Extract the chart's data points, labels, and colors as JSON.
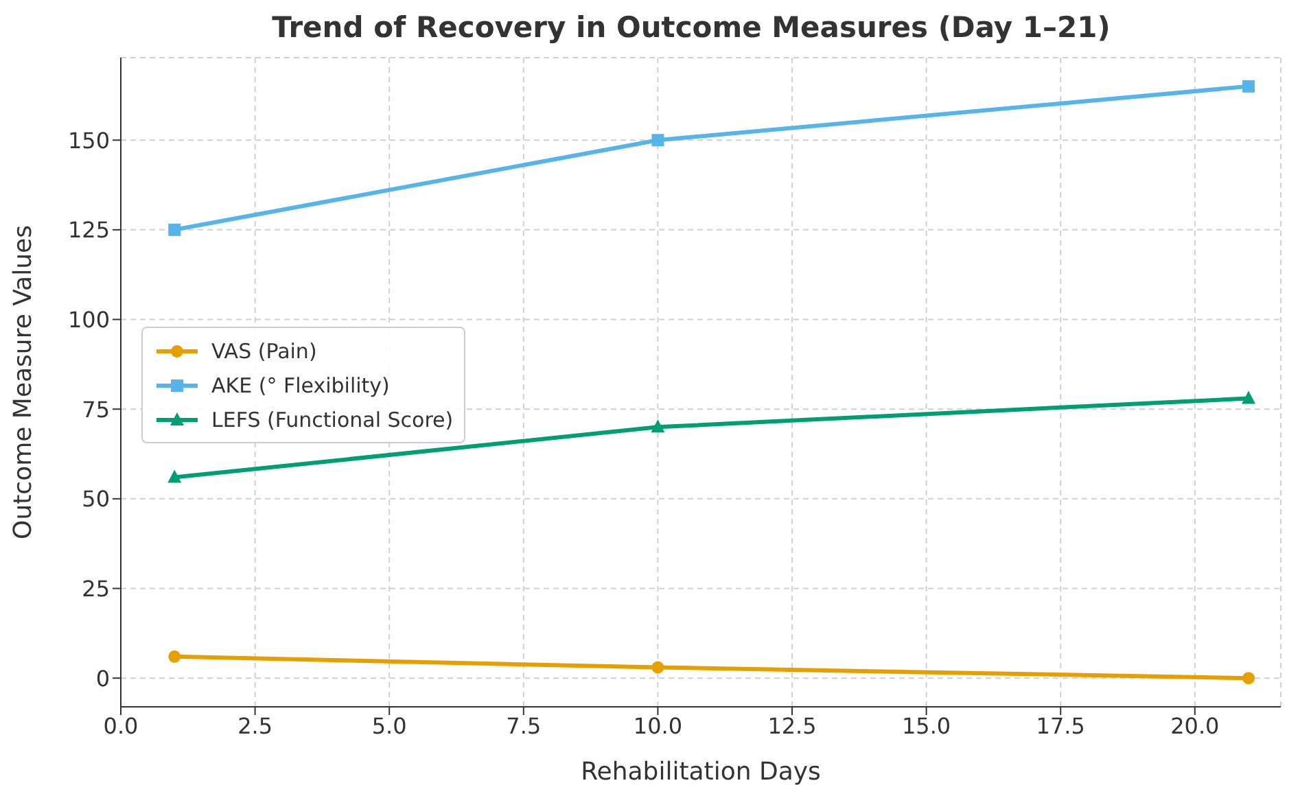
{
  "chart_data": {
    "type": "line",
    "title": "Trend of Recovery in Outcome Measures (Day 1–21)",
    "xlabel": "Rehabilitation Days",
    "ylabel": "Outcome Measure Values",
    "x": [
      1,
      10,
      21
    ],
    "series": [
      {
        "name": "VAS (Pain)",
        "color": "#e69f00",
        "values": [
          6,
          3,
          0
        ],
        "marker": "circle"
      },
      {
        "name": "AKE (° Flexibility)",
        "color": "#56b4e9",
        "values": [
          125,
          150,
          165
        ],
        "marker": "square"
      },
      {
        "name": "LEFS (Functional Score)",
        "color": "#009e73",
        "values": [
          56,
          70,
          78
        ],
        "marker": "triangle"
      }
    ],
    "xlim": [
      0,
      21.6
    ],
    "xticks": [
      {
        "value": 0,
        "label": "0.0"
      },
      {
        "value": 2.5,
        "label": "2.5"
      },
      {
        "value": 5,
        "label": "5.0"
      },
      {
        "value": 7.5,
        "label": "7.5"
      },
      {
        "value": 10,
        "label": "10.0"
      },
      {
        "value": 12.5,
        "label": "12.5"
      },
      {
        "value": 15,
        "label": "15.0"
      },
      {
        "value": 17.5,
        "label": "17.5"
      },
      {
        "value": 20,
        "label": "20.0"
      }
    ],
    "ylim": [
      -8,
      173
    ],
    "yticks": [
      0,
      25,
      50,
      75,
      100,
      125,
      150
    ],
    "grid": true,
    "legend": "left",
    "line_style": "solid"
  }
}
